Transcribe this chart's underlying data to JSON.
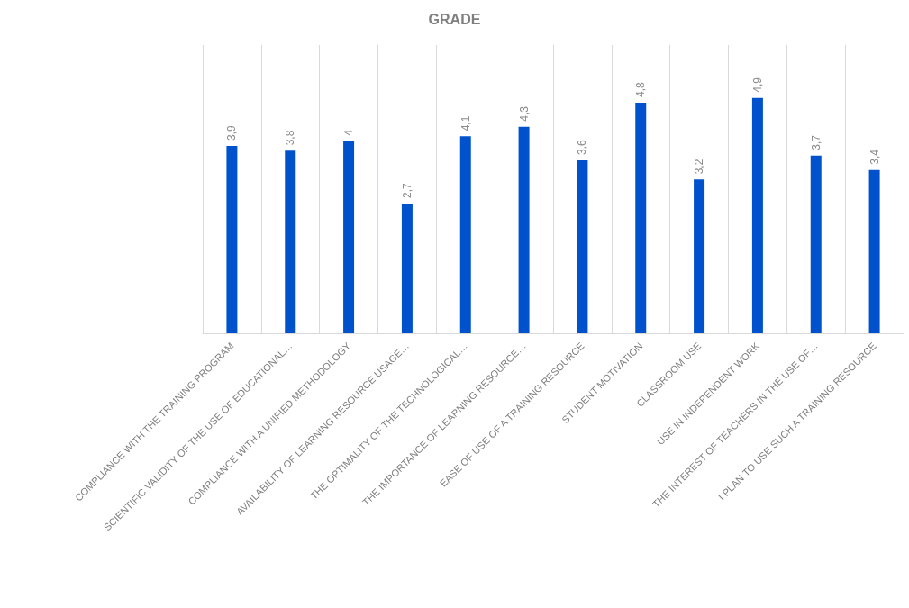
{
  "chart_data": {
    "type": "bar",
    "title": "GRADE",
    "categories": [
      "COMPLIANCE WITH THE TRAINING PROGRAM",
      "SCIENTIFIC VALIDITY OF THE USE OF EDUCATIONAL…",
      "COMPLIANCE WITH A UNIFIED METHODOLOGY",
      "AVAILABILITY OF LEARNING RESOURCE USAGE…",
      "THE OPTIMALITY OF THE TECHNOLOGICAL…",
      "THE IMPORTANCE OF LEARNING RESOURCE…",
      "EASE OF USE OF A TRAINING RESOURCE",
      "STUDENT MOTIVATION",
      "CLASSROOM USE",
      "USE IN INDEPENDENT WORK",
      "THE INTEREST OF TEACHERS IN THE USE OF…",
      "I PLAN TO USE SUCH A TRAINING RESOURCE"
    ],
    "values": [
      3.9,
      3.8,
      4,
      2.7,
      4.1,
      4.3,
      3.6,
      4.8,
      3.2,
      4.9,
      3.7,
      3.4
    ],
    "value_labels": [
      "3,9",
      "3,8",
      "4",
      "2,7",
      "4,1",
      "4,3",
      "3,6",
      "4,8",
      "3,2",
      "4,9",
      "3,7",
      "3,4"
    ],
    "color": "#0052cc",
    "ylim": [
      0,
      6
    ],
    "tick_labels": "x",
    "grid": "x"
  }
}
